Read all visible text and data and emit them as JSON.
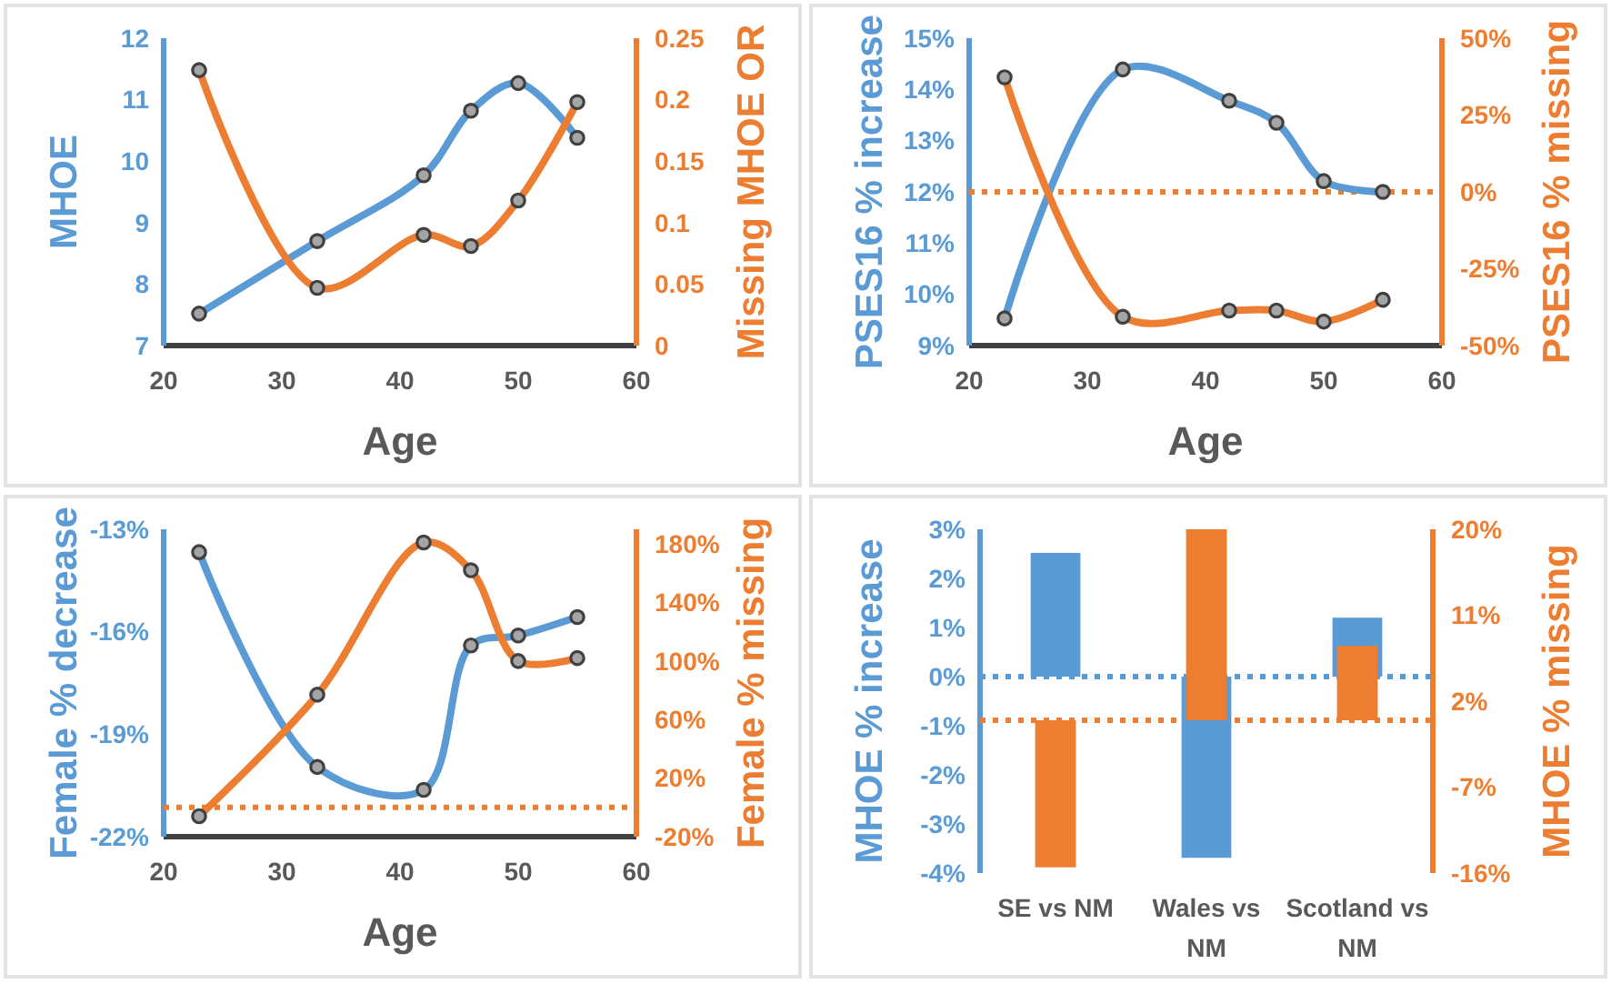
{
  "chart_data": [
    {
      "type": "line",
      "x": [
        23,
        33,
        42,
        46,
        50,
        55
      ],
      "xlabel": "Age",
      "ylabel": "MHOE",
      "y2label": "Missing MHOE OR",
      "xlim": [
        20,
        60
      ],
      "xticks": [
        20,
        30,
        40,
        50,
        60
      ],
      "ylim": [
        7,
        12
      ],
      "yticks": [
        7,
        8,
        9,
        10,
        11,
        12
      ],
      "y2lim": [
        0,
        0.25
      ],
      "y2ticks": [
        0,
        0.05,
        0.1,
        0.15,
        0.2,
        0.25
      ],
      "marker": "circle",
      "series": [
        {
          "color": "#5b9bd5",
          "values": [
            7.52,
            8.7,
            9.77,
            10.82,
            11.27,
            10.38
          ]
        },
        {
          "color": "#ed7d31",
          "axis": "y2",
          "values": [
            0.224,
            0.047,
            0.09,
            0.081,
            0.118,
            0.198
          ]
        }
      ]
    },
    {
      "type": "line",
      "x": [
        23,
        33,
        42,
        46,
        50,
        55
      ],
      "xlabel": "Age",
      "ylabel": "PSES16 % increase",
      "y2label": "PSES16 % missing",
      "xlim": [
        20,
        60
      ],
      "xticks": [
        20,
        30,
        40,
        50,
        60
      ],
      "ylim": [
        9,
        15
      ],
      "yticks": [
        {
          "value": 9,
          "label": "9%"
        },
        {
          "value": 10,
          "label": "10%"
        },
        {
          "value": 11,
          "label": "11%"
        },
        {
          "value": 12,
          "label": "12%"
        },
        {
          "value": 13,
          "label": "13%"
        },
        {
          "value": 14,
          "label": "14%"
        },
        {
          "value": 15,
          "label": "15%"
        }
      ],
      "y2lim": [
        -50,
        50
      ],
      "y2ticks": [
        {
          "value": -50,
          "label": "-50%"
        },
        {
          "value": -25,
          "label": "-25%"
        },
        {
          "value": 0,
          "label": "0%"
        },
        {
          "value": 25,
          "label": "25%"
        },
        {
          "value": 50,
          "label": "50%"
        }
      ],
      "marker": "circle",
      "ref_lines": [
        {
          "axis": "y2",
          "value": 0,
          "color": "#ed7d31",
          "line_style": "dotted"
        }
      ],
      "series": [
        {
          "color": "#5b9bd5",
          "values": [
            9.53,
            14.39,
            13.78,
            13.35,
            12.21,
            12.0
          ]
        },
        {
          "color": "#ed7d31",
          "axis": "y2",
          "values": [
            37.3,
            -40.6,
            -38.6,
            -38.6,
            -42.2,
            -35.1
          ]
        }
      ]
    },
    {
      "type": "line",
      "x": [
        23,
        33,
        42,
        46,
        50,
        55
      ],
      "xlabel": "Age",
      "ylabel": "Female % decrease",
      "y2label": "Female % missing",
      "xlim": [
        20,
        60
      ],
      "xticks": [
        20,
        30,
        40,
        50,
        60
      ],
      "ylim": [
        -22,
        -13
      ],
      "yticks": [
        {
          "value": -22,
          "label": "-22%"
        },
        {
          "value": -19,
          "label": "-19%"
        },
        {
          "value": -16,
          "label": "-16%"
        },
        {
          "value": -13,
          "label": "-13%"
        }
      ],
      "y2lim": [
        -20,
        190
      ],
      "y2ticks": [
        {
          "value": -20,
          "label": "-20%"
        },
        {
          "value": 20,
          "label": "20%"
        },
        {
          "value": 60,
          "label": "60%"
        },
        {
          "value": 100,
          "label": "100%"
        },
        {
          "value": 140,
          "label": "140%"
        },
        {
          "value": 180,
          "label": "180%"
        }
      ],
      "marker": "circle",
      "ref_lines": [
        {
          "axis": "y2",
          "value": 0,
          "color": "#ed7d31",
          "line_style": "dotted"
        }
      ],
      "series": [
        {
          "color": "#5b9bd5",
          "values": [
            -13.67,
            -19.96,
            -20.63,
            -16.4,
            -16.11,
            -15.57
          ]
        },
        {
          "color": "#ed7d31",
          "axis": "y2",
          "values": [
            -6,
            77,
            181,
            162,
            100,
            102
          ]
        }
      ]
    },
    {
      "type": "bar",
      "categories": [
        "SE vs NM",
        "Wales vs NM",
        "Scotland vs NM"
      ],
      "ylabel": "MHOE % increase",
      "y2label": "MHOE % missing",
      "ylim": [
        -4,
        3
      ],
      "yticks": [
        {
          "value": -4,
          "label": "-4%"
        },
        {
          "value": -3,
          "label": "-3%"
        },
        {
          "value": -2,
          "label": "-2%"
        },
        {
          "value": -1,
          "label": "-1%"
        },
        {
          "value": 0,
          "label": "0%"
        },
        {
          "value": 1,
          "label": "1%"
        },
        {
          "value": 2,
          "label": "2%"
        },
        {
          "value": 3,
          "label": "3%"
        }
      ],
      "y2lim": [
        -16,
        20
      ],
      "y2ticks": [
        {
          "value": -16,
          "label": "-16%"
        },
        {
          "value": -7,
          "label": "-7%"
        },
        {
          "value": 2,
          "label": "2%"
        },
        {
          "value": 11,
          "label": "11%"
        },
        {
          "value": 20,
          "label": "20%"
        }
      ],
      "ref_lines": [
        {
          "axis": "y",
          "value": 0,
          "color": "#5b9bd5",
          "line_style": "dotted"
        },
        {
          "axis": "y2",
          "value": 0,
          "color": "#ed7d31",
          "line_style": "dotted"
        }
      ],
      "series": [
        {
          "color": "#5b9bd5",
          "values": [
            2.52,
            -3.69,
            1.2
          ]
        },
        {
          "color": "#ed7d31",
          "axis": "y2",
          "values": [
            -15.4,
            20,
            7.8
          ]
        }
      ]
    }
  ]
}
